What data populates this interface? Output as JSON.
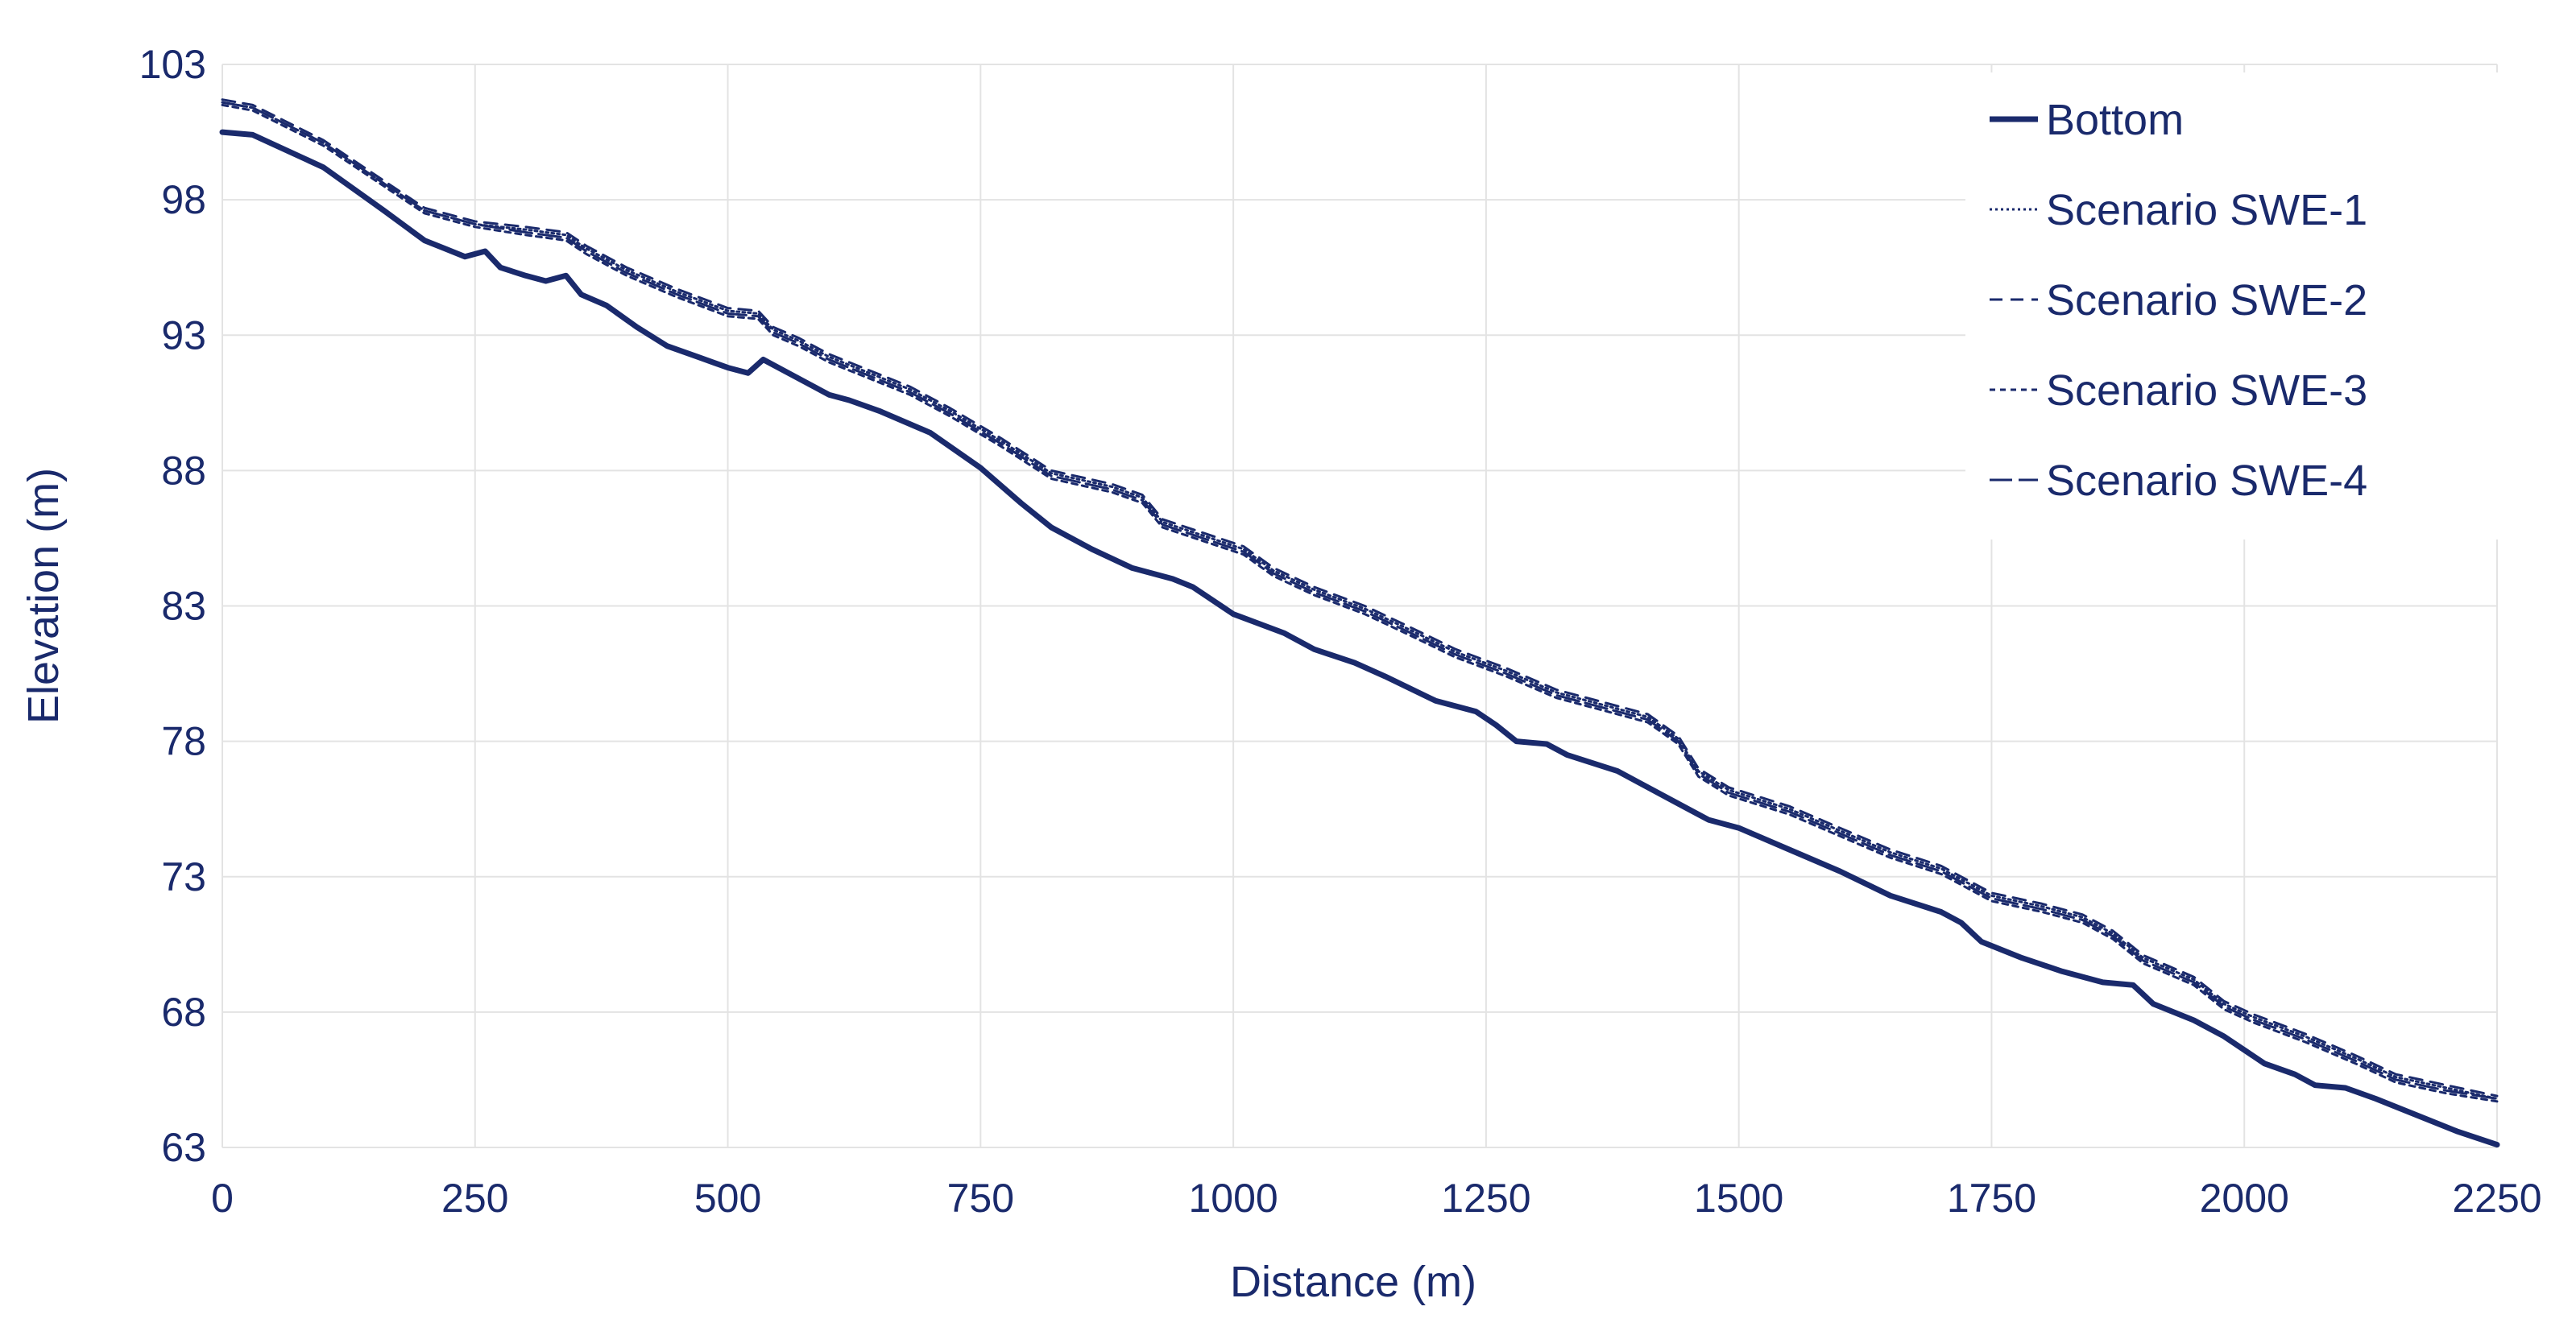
{
  "chart_data": {
    "type": "line",
    "title": "",
    "xlabel": "Distance (m)",
    "ylabel": "Elevation (m)",
    "xlim": [
      0,
      2250
    ],
    "ylim": [
      63,
      103
    ],
    "xticks": [
      "0",
      "250",
      "500",
      "750",
      "1000",
      "1250",
      "1500",
      "1750",
      "2000",
      "2250"
    ],
    "yticks": [
      "63",
      "68",
      "73",
      "78",
      "83",
      "88",
      "93",
      "98",
      "103"
    ],
    "grid": true,
    "legend_position": "top-right",
    "line_color": "#1a2a6c",
    "series": [
      {
        "name": "Bottom",
        "style": "solid-thick",
        "points": [
          [
            0,
            100.5
          ],
          [
            30,
            100.4
          ],
          [
            100,
            99.2
          ],
          [
            160,
            97.6
          ],
          [
            200,
            96.5
          ],
          [
            220,
            96.2
          ],
          [
            240,
            95.9
          ],
          [
            260,
            96.1
          ],
          [
            275,
            95.5
          ],
          [
            300,
            95.2
          ],
          [
            320,
            95.0
          ],
          [
            340,
            95.2
          ],
          [
            355,
            94.5
          ],
          [
            380,
            94.1
          ],
          [
            410,
            93.3
          ],
          [
            440,
            92.6
          ],
          [
            470,
            92.2
          ],
          [
            500,
            91.8
          ],
          [
            520,
            91.6
          ],
          [
            535,
            92.1
          ],
          [
            560,
            91.6
          ],
          [
            600,
            90.8
          ],
          [
            620,
            90.6
          ],
          [
            650,
            90.2
          ],
          [
            700,
            89.4
          ],
          [
            750,
            88.1
          ],
          [
            790,
            86.8
          ],
          [
            820,
            85.9
          ],
          [
            860,
            85.1
          ],
          [
            900,
            84.4
          ],
          [
            940,
            84.0
          ],
          [
            960,
            83.7
          ],
          [
            1000,
            82.7
          ],
          [
            1050,
            82.0
          ],
          [
            1080,
            81.4
          ],
          [
            1120,
            80.9
          ],
          [
            1150,
            80.4
          ],
          [
            1200,
            79.5
          ],
          [
            1240,
            79.1
          ],
          [
            1260,
            78.6
          ],
          [
            1280,
            78.0
          ],
          [
            1310,
            77.9
          ],
          [
            1330,
            77.5
          ],
          [
            1380,
            76.9
          ],
          [
            1400,
            76.5
          ],
          [
            1440,
            75.7
          ],
          [
            1470,
            75.1
          ],
          [
            1500,
            74.8
          ],
          [
            1550,
            74.0
          ],
          [
            1600,
            73.2
          ],
          [
            1650,
            72.3
          ],
          [
            1700,
            71.7
          ],
          [
            1720,
            71.3
          ],
          [
            1740,
            70.6
          ],
          [
            1780,
            70.0
          ],
          [
            1820,
            69.5
          ],
          [
            1860,
            69.1
          ],
          [
            1890,
            69.0
          ],
          [
            1910,
            68.3
          ],
          [
            1950,
            67.7
          ],
          [
            1980,
            67.1
          ],
          [
            2020,
            66.1
          ],
          [
            2050,
            65.7
          ],
          [
            2070,
            65.3
          ],
          [
            2100,
            65.2
          ],
          [
            2130,
            64.8
          ],
          [
            2170,
            64.2
          ],
          [
            2210,
            63.6
          ],
          [
            2250,
            63.1
          ]
        ]
      },
      {
        "name": "Scenario SWE-1",
        "style": "dotted",
        "points": [
          [
            0,
            101.6
          ],
          [
            30,
            101.4
          ],
          [
            100,
            100.1
          ],
          [
            160,
            98.6
          ],
          [
            200,
            97.6
          ],
          [
            250,
            97.1
          ],
          [
            300,
            96.9
          ],
          [
            340,
            96.7
          ],
          [
            360,
            96.2
          ],
          [
            400,
            95.4
          ],
          [
            450,
            94.6
          ],
          [
            500,
            93.9
          ],
          [
            530,
            93.8
          ],
          [
            545,
            93.2
          ],
          [
            570,
            92.8
          ],
          [
            600,
            92.2
          ],
          [
            640,
            91.6
          ],
          [
            680,
            91.0
          ],
          [
            720,
            90.2
          ],
          [
            770,
            89.1
          ],
          [
            820,
            87.9
          ],
          [
            880,
            87.4
          ],
          [
            910,
            87.0
          ],
          [
            930,
            86.1
          ],
          [
            970,
            85.6
          ],
          [
            1010,
            85.1
          ],
          [
            1040,
            84.3
          ],
          [
            1080,
            83.6
          ],
          [
            1130,
            82.9
          ],
          [
            1170,
            82.2
          ],
          [
            1220,
            81.3
          ],
          [
            1270,
            80.6
          ],
          [
            1320,
            79.8
          ],
          [
            1370,
            79.3
          ],
          [
            1410,
            78.9
          ],
          [
            1440,
            78.1
          ],
          [
            1460,
            76.9
          ],
          [
            1490,
            76.2
          ],
          [
            1550,
            75.5
          ],
          [
            1600,
            74.7
          ],
          [
            1650,
            73.9
          ],
          [
            1700,
            73.3
          ],
          [
            1720,
            72.9
          ],
          [
            1750,
            72.3
          ],
          [
            1800,
            71.9
          ],
          [
            1840,
            71.5
          ],
          [
            1870,
            70.9
          ],
          [
            1900,
            70.0
          ],
          [
            1950,
            69.2
          ],
          [
            1980,
            68.3
          ],
          [
            2010,
            67.8
          ],
          [
            2060,
            67.1
          ],
          [
            2110,
            66.3
          ],
          [
            2150,
            65.6
          ],
          [
            2200,
            65.2
          ],
          [
            2250,
            64.8
          ]
        ]
      },
      {
        "name": "Scenario SWE-2",
        "style": "dashed",
        "points": [
          [
            0,
            101.7
          ],
          [
            30,
            101.5
          ],
          [
            100,
            100.2
          ],
          [
            160,
            98.7
          ],
          [
            200,
            97.7
          ],
          [
            250,
            97.2
          ],
          [
            300,
            97.0
          ],
          [
            340,
            96.8
          ],
          [
            360,
            96.3
          ],
          [
            400,
            95.5
          ],
          [
            450,
            94.7
          ],
          [
            500,
            94.0
          ],
          [
            530,
            93.9
          ],
          [
            545,
            93.3
          ],
          [
            570,
            92.9
          ],
          [
            600,
            92.3
          ],
          [
            640,
            91.7
          ],
          [
            680,
            91.1
          ],
          [
            720,
            90.3
          ],
          [
            770,
            89.2
          ],
          [
            820,
            88.0
          ],
          [
            880,
            87.5
          ],
          [
            910,
            87.1
          ],
          [
            930,
            86.2
          ],
          [
            970,
            85.7
          ],
          [
            1010,
            85.2
          ],
          [
            1040,
            84.4
          ],
          [
            1080,
            83.7
          ],
          [
            1130,
            83.0
          ],
          [
            1170,
            82.3
          ],
          [
            1220,
            81.4
          ],
          [
            1270,
            80.7
          ],
          [
            1320,
            79.9
          ],
          [
            1370,
            79.4
          ],
          [
            1410,
            79.0
          ],
          [
            1440,
            78.2
          ],
          [
            1460,
            77.0
          ],
          [
            1490,
            76.3
          ],
          [
            1550,
            75.6
          ],
          [
            1600,
            74.8
          ],
          [
            1650,
            74.0
          ],
          [
            1700,
            73.4
          ],
          [
            1720,
            73.0
          ],
          [
            1750,
            72.4
          ],
          [
            1800,
            72.0
          ],
          [
            1840,
            71.6
          ],
          [
            1870,
            71.0
          ],
          [
            1900,
            70.1
          ],
          [
            1950,
            69.3
          ],
          [
            1980,
            68.4
          ],
          [
            2010,
            67.9
          ],
          [
            2060,
            67.2
          ],
          [
            2110,
            66.4
          ],
          [
            2150,
            65.7
          ],
          [
            2200,
            65.3
          ],
          [
            2250,
            64.9
          ]
        ]
      },
      {
        "name": "Scenario SWE-3",
        "style": "short-dash",
        "points": [
          [
            0,
            101.5
          ],
          [
            30,
            101.3
          ],
          [
            100,
            100.0
          ],
          [
            160,
            98.5
          ],
          [
            200,
            97.5
          ],
          [
            250,
            97.0
          ],
          [
            300,
            96.7
          ],
          [
            340,
            96.5
          ],
          [
            360,
            96.0
          ],
          [
            400,
            95.2
          ],
          [
            450,
            94.4
          ],
          [
            500,
            93.7
          ],
          [
            530,
            93.6
          ],
          [
            545,
            93.0
          ],
          [
            570,
            92.6
          ],
          [
            600,
            92.0
          ],
          [
            640,
            91.4
          ],
          [
            680,
            90.8
          ],
          [
            720,
            90.0
          ],
          [
            770,
            88.9
          ],
          [
            820,
            87.7
          ],
          [
            880,
            87.2
          ],
          [
            910,
            86.8
          ],
          [
            930,
            85.9
          ],
          [
            970,
            85.4
          ],
          [
            1010,
            84.9
          ],
          [
            1040,
            84.1
          ],
          [
            1080,
            83.4
          ],
          [
            1130,
            82.7
          ],
          [
            1170,
            82.0
          ],
          [
            1220,
            81.1
          ],
          [
            1270,
            80.4
          ],
          [
            1320,
            79.6
          ],
          [
            1370,
            79.1
          ],
          [
            1410,
            78.7
          ],
          [
            1440,
            77.9
          ],
          [
            1460,
            76.7
          ],
          [
            1490,
            76.0
          ],
          [
            1550,
            75.3
          ],
          [
            1600,
            74.5
          ],
          [
            1650,
            73.7
          ],
          [
            1700,
            73.1
          ],
          [
            1720,
            72.7
          ],
          [
            1750,
            72.1
          ],
          [
            1800,
            71.7
          ],
          [
            1840,
            71.3
          ],
          [
            1870,
            70.7
          ],
          [
            1900,
            69.8
          ],
          [
            1950,
            69.0
          ],
          [
            1980,
            68.1
          ],
          [
            2010,
            67.6
          ],
          [
            2060,
            66.9
          ],
          [
            2110,
            66.1
          ],
          [
            2150,
            65.4
          ],
          [
            2200,
            65.0
          ],
          [
            2250,
            64.7
          ]
        ]
      },
      {
        "name": "Scenario SWE-4",
        "style": "long-dash",
        "points": [
          [
            0,
            101.6
          ],
          [
            30,
            101.4
          ],
          [
            100,
            100.1
          ],
          [
            160,
            98.6
          ],
          [
            200,
            97.6
          ],
          [
            250,
            97.1
          ],
          [
            300,
            96.8
          ],
          [
            340,
            96.6
          ],
          [
            360,
            96.1
          ],
          [
            400,
            95.3
          ],
          [
            450,
            94.5
          ],
          [
            500,
            93.8
          ],
          [
            530,
            93.7
          ],
          [
            545,
            93.1
          ],
          [
            570,
            92.7
          ],
          [
            600,
            92.1
          ],
          [
            640,
            91.5
          ],
          [
            680,
            90.9
          ],
          [
            720,
            90.1
          ],
          [
            770,
            89.0
          ],
          [
            820,
            87.8
          ],
          [
            880,
            87.3
          ],
          [
            910,
            86.9
          ],
          [
            930,
            86.0
          ],
          [
            970,
            85.5
          ],
          [
            1010,
            85.0
          ],
          [
            1040,
            84.2
          ],
          [
            1080,
            83.5
          ],
          [
            1130,
            82.8
          ],
          [
            1170,
            82.1
          ],
          [
            1220,
            81.2
          ],
          [
            1270,
            80.5
          ],
          [
            1320,
            79.7
          ],
          [
            1370,
            79.2
          ],
          [
            1410,
            78.8
          ],
          [
            1440,
            78.0
          ],
          [
            1460,
            76.8
          ],
          [
            1490,
            76.1
          ],
          [
            1550,
            75.4
          ],
          [
            1600,
            74.6
          ],
          [
            1650,
            73.8
          ],
          [
            1700,
            73.2
          ],
          [
            1720,
            72.8
          ],
          [
            1750,
            72.2
          ],
          [
            1800,
            71.8
          ],
          [
            1840,
            71.4
          ],
          [
            1870,
            70.8
          ],
          [
            1900,
            69.9
          ],
          [
            1950,
            69.1
          ],
          [
            1980,
            68.2
          ],
          [
            2010,
            67.7
          ],
          [
            2060,
            67.0
          ],
          [
            2110,
            66.2
          ],
          [
            2150,
            65.5
          ],
          [
            2200,
            65.1
          ],
          [
            2250,
            64.8
          ]
        ]
      }
    ]
  }
}
